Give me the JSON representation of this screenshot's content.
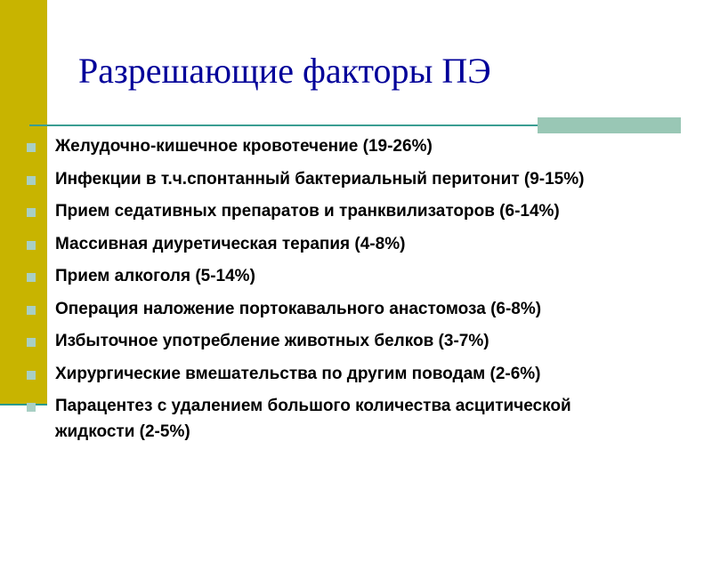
{
  "slide": {
    "title": "Разрешающие факторы ПЭ",
    "colors": {
      "side_bar": "#c8b400",
      "title": "#000099",
      "rule": "#3a9e92",
      "accent": "#99c7b5",
      "bullet": "#a8cfc4"
    },
    "items": [
      "Желудочно-кишечное кровотечение (19-26%)",
      "Инфекции в т.ч.спонтанный бактериальный перитонит (9-15%)",
      "Прием седативных препаратов и транквилизаторов (6-14%)",
      "Массивная диуретическая терапия (4-8%)",
      "Прием алкоголя (5-14%)",
      "Операция наложение портокавального анастомоза (6-8%)",
      "Избыточное употребление животных белков (3-7%)",
      "Хирургические вмешательства по другим поводам (2-6%)",
      "Парацентез с удалением большого количества асцитической жидкости (2-5%)"
    ]
  }
}
